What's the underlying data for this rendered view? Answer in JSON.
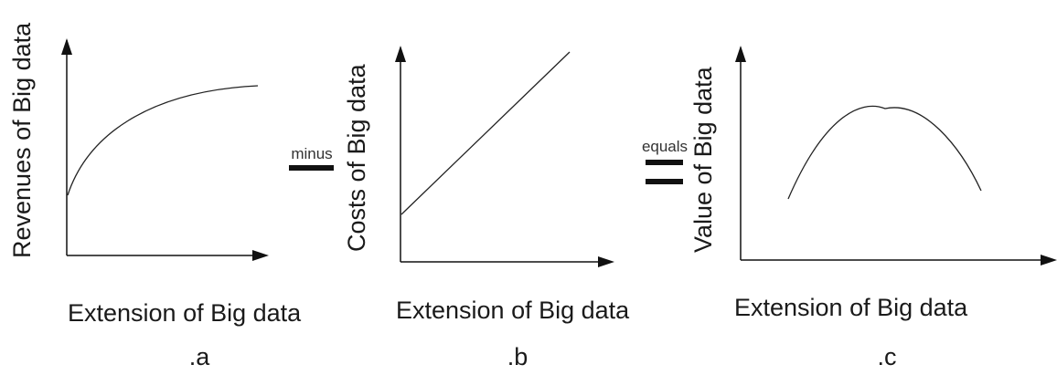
{
  "panels": [
    {
      "caption": ".a",
      "ylabel": "Revenues of Big data",
      "xlabel": "Extension of Big data",
      "curve": "concave-increasing"
    },
    {
      "caption": ".b",
      "ylabel": "Costs of Big data",
      "xlabel": "Extension of Big data",
      "curve": "linear-increasing"
    },
    {
      "caption": ".c",
      "ylabel": "Value of Big data",
      "xlabel": "Extension of Big data",
      "curve": "inverted-u"
    }
  ],
  "operators": [
    {
      "label": "minus",
      "symbol": "minus-bar"
    },
    {
      "label": "equals",
      "symbol": "equals-bars"
    }
  ],
  "colors": {
    "line": "#111111",
    "text": "#1a1a1a",
    "background": "#ffffff"
  }
}
